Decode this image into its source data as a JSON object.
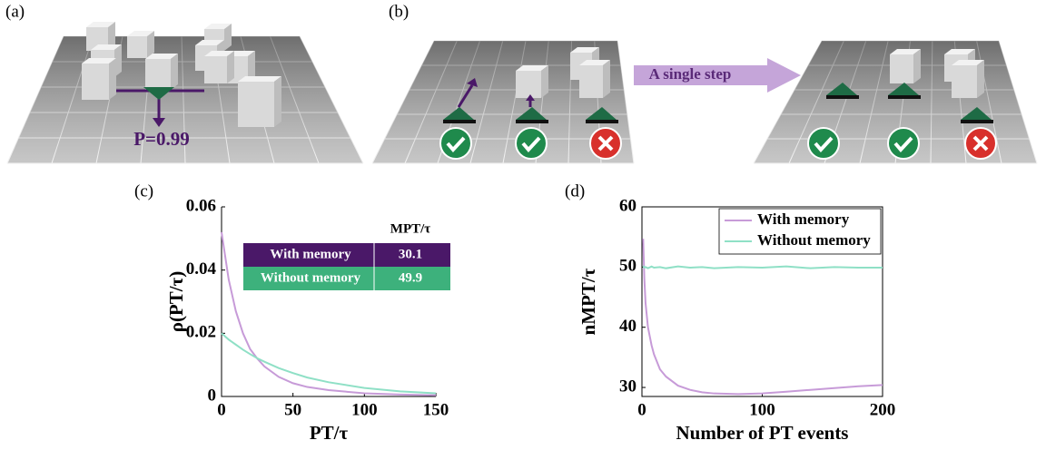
{
  "illustrations": [
    {
      "panel_label": "(a)",
      "annotation": "P=0.99"
    },
    {
      "panel_label": "(b)",
      "arrow_label": "A single step"
    }
  ],
  "chart_data": [
    {
      "type": "line",
      "panel_label": "(c)",
      "x_label": "PT/τ",
      "y_label": "ρ(PT/τ)",
      "x": [
        0,
        5,
        10,
        15,
        20,
        25,
        30,
        40,
        50,
        60,
        75,
        100,
        125,
        150
      ],
      "series": [
        {
          "color": "#c79bd8",
          "values": [
            0.052,
            0.037,
            0.027,
            0.02,
            0.015,
            0.012,
            0.0095,
            0.0062,
            0.0042,
            0.003,
            0.002,
            0.001,
            0.0006,
            0.0004
          ]
        },
        {
          "color": "#8fe0c6",
          "values": [
            0.02,
            0.018,
            0.0164,
            0.0148,
            0.0134,
            0.0121,
            0.011,
            0.009,
            0.0074,
            0.006,
            0.0045,
            0.0027,
            0.0016,
            0.001
          ]
        }
      ],
      "xlim": [
        0,
        150
      ],
      "ylim": [
        0,
        0.06
      ],
      "xticks": [
        0,
        50,
        100,
        150
      ],
      "yticks": [
        0,
        0.02,
        0.04,
        0.06
      ],
      "inset_table": {
        "header": "MPT/τ",
        "rows": [
          [
            "With memory",
            30.1
          ],
          [
            "Without memory",
            49.9
          ]
        ],
        "row_colors": [
          "#4a1868",
          "#3db17c"
        ]
      }
    },
    {
      "type": "line",
      "panel_label": "(d)",
      "x_label": "Number of PT events",
      "y_label": "nMPT/τ",
      "x": [
        1,
        2,
        3,
        5,
        8,
        10,
        15,
        20,
        30,
        40,
        50,
        60,
        80,
        100,
        120,
        140,
        160,
        180,
        200
      ],
      "series": [
        {
          "name": "With memory",
          "color": "#c79bd8",
          "values": [
            54.7,
            48,
            44,
            40,
            37,
            35.5,
            33,
            31.8,
            30.3,
            29.6,
            29.2,
            29,
            28.9,
            29,
            29.3,
            29.6,
            29.9,
            30.2,
            30.4
          ]
        },
        {
          "name": "Without memory",
          "color": "#8fe0c6",
          "values": [
            50.2,
            49.9,
            50,
            49.8,
            50.1,
            49.9,
            50,
            49.8,
            50.1,
            49.9,
            50,
            49.8,
            50,
            49.9,
            50.1,
            49.8,
            50,
            49.9,
            49.9
          ]
        }
      ],
      "xlim": [
        0,
        200
      ],
      "ylim": [
        28.5,
        60
      ],
      "xticks": [
        0,
        100,
        200
      ],
      "yticks": [
        30,
        40,
        50,
        60
      ],
      "legend": "upper right"
    }
  ]
}
